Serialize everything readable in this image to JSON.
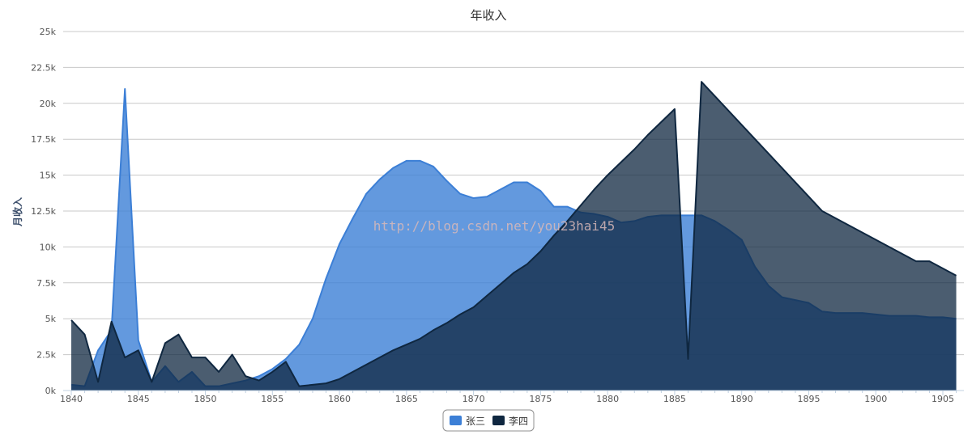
{
  "chart_data": {
    "type": "area",
    "title": "年收入",
    "ylabel": "月收入",
    "xlabel": "",
    "xlim": [
      1840,
      1906
    ],
    "ylim": [
      0,
      25000
    ],
    "x_ticks": [
      1840,
      1845,
      1850,
      1855,
      1860,
      1865,
      1870,
      1875,
      1880,
      1885,
      1890,
      1895,
      1900,
      1905
    ],
    "x_tick_labels": [
      "1840",
      "1845",
      "1850",
      "1855",
      "1860",
      "1865",
      "1870",
      "1875",
      "1880",
      "1885",
      "1890",
      "1895",
      "1900",
      "1905"
    ],
    "y_ticks": [
      0,
      2500,
      5000,
      7500,
      10000,
      12500,
      15000,
      17500,
      20000,
      22500,
      25000
    ],
    "y_tick_labels": [
      "0k",
      "2.5k",
      "5k",
      "7.5k",
      "10k",
      "12.5k",
      "15k",
      "17.5k",
      "20k",
      "22.5k",
      "25k"
    ],
    "grid": true,
    "legend_position": "bottom-center",
    "watermark": "http://blog.csdn.net/you23hai45",
    "series": [
      {
        "name": "张三",
        "color": "#3c7fd6",
        "points": [
          [
            1840,
            400
          ],
          [
            1841,
            300
          ],
          [
            1842,
            2800
          ],
          [
            1843,
            4200
          ],
          [
            1844,
            21000
          ],
          [
            1845,
            3500
          ],
          [
            1846,
            600
          ],
          [
            1847,
            1700
          ],
          [
            1848,
            600
          ],
          [
            1849,
            1300
          ],
          [
            1850,
            300
          ],
          [
            1851,
            300
          ],
          [
            1852,
            500
          ],
          [
            1853,
            700
          ],
          [
            1854,
            1000
          ],
          [
            1855,
            1500
          ],
          [
            1856,
            2200
          ],
          [
            1857,
            3200
          ],
          [
            1858,
            5000
          ],
          [
            1859,
            7800
          ],
          [
            1860,
            10200
          ],
          [
            1861,
            12000
          ],
          [
            1862,
            13700
          ],
          [
            1863,
            14700
          ],
          [
            1864,
            15500
          ],
          [
            1865,
            16000
          ],
          [
            1866,
            16000
          ],
          [
            1867,
            15600
          ],
          [
            1868,
            14600
          ],
          [
            1869,
            13700
          ],
          [
            1870,
            13400
          ],
          [
            1871,
            13500
          ],
          [
            1872,
            14000
          ],
          [
            1873,
            14500
          ],
          [
            1874,
            14500
          ],
          [
            1875,
            13900
          ],
          [
            1876,
            12800
          ],
          [
            1877,
            12800
          ],
          [
            1878,
            12400
          ],
          [
            1879,
            12300
          ],
          [
            1880,
            12100
          ],
          [
            1881,
            11700
          ],
          [
            1882,
            11800
          ],
          [
            1883,
            12100
          ],
          [
            1884,
            12200
          ],
          [
            1885,
            12200
          ],
          [
            1886,
            12200
          ],
          [
            1887,
            12200
          ],
          [
            1888,
            11800
          ],
          [
            1889,
            11200
          ],
          [
            1890,
            10500
          ],
          [
            1891,
            8600
          ],
          [
            1892,
            7300
          ],
          [
            1893,
            6500
          ],
          [
            1894,
            6300
          ],
          [
            1895,
            6100
          ],
          [
            1896,
            5500
          ],
          [
            1897,
            5400
          ],
          [
            1898,
            5400
          ],
          [
            1899,
            5400
          ],
          [
            1900,
            5300
          ],
          [
            1901,
            5200
          ],
          [
            1902,
            5200
          ],
          [
            1903,
            5200
          ],
          [
            1904,
            5100
          ],
          [
            1905,
            5100
          ],
          [
            1906,
            5000
          ]
        ]
      },
      {
        "name": "李四",
        "color": "#0f2740",
        "points": [
          [
            1840,
            4900
          ],
          [
            1841,
            3900
          ],
          [
            1842,
            600
          ],
          [
            1843,
            4800
          ],
          [
            1844,
            2300
          ],
          [
            1845,
            2800
          ],
          [
            1846,
            600
          ],
          [
            1847,
            3300
          ],
          [
            1848,
            3900
          ],
          [
            1849,
            2300
          ],
          [
            1850,
            2300
          ],
          [
            1851,
            1300
          ],
          [
            1852,
            2500
          ],
          [
            1853,
            1000
          ],
          [
            1854,
            700
          ],
          [
            1855,
            1300
          ],
          [
            1856,
            2000
          ],
          [
            1857,
            300
          ],
          [
            1858,
            400
          ],
          [
            1859,
            500
          ],
          [
            1860,
            800
          ],
          [
            1861,
            1300
          ],
          [
            1862,
            1800
          ],
          [
            1863,
            2300
          ],
          [
            1864,
            2800
          ],
          [
            1865,
            3200
          ],
          [
            1866,
            3600
          ],
          [
            1867,
            4200
          ],
          [
            1868,
            4700
          ],
          [
            1869,
            5300
          ],
          [
            1870,
            5800
          ],
          [
            1871,
            6600
          ],
          [
            1872,
            7400
          ],
          [
            1873,
            8200
          ],
          [
            1874,
            8800
          ],
          [
            1875,
            9700
          ],
          [
            1876,
            10800
          ],
          [
            1877,
            11800
          ],
          [
            1878,
            12900
          ],
          [
            1879,
            14000
          ],
          [
            1880,
            15000
          ],
          [
            1881,
            15900
          ],
          [
            1882,
            16800
          ],
          [
            1883,
            17800
          ],
          [
            1884,
            18700
          ],
          [
            1885,
            19600
          ],
          [
            1886,
            2200
          ],
          [
            1887,
            21500
          ],
          [
            1888,
            20500
          ],
          [
            1889,
            19500
          ],
          [
            1890,
            18500
          ],
          [
            1891,
            17500
          ],
          [
            1892,
            16500
          ],
          [
            1893,
            15500
          ],
          [
            1894,
            14500
          ],
          [
            1895,
            13500
          ],
          [
            1896,
            12500
          ],
          [
            1897,
            12000
          ],
          [
            1898,
            11500
          ],
          [
            1899,
            11000
          ],
          [
            1900,
            10500
          ],
          [
            1901,
            10000
          ],
          [
            1902,
            9500
          ],
          [
            1903,
            9000
          ],
          [
            1904,
            9000
          ],
          [
            1905,
            8500
          ],
          [
            1906,
            8000
          ]
        ]
      }
    ]
  }
}
